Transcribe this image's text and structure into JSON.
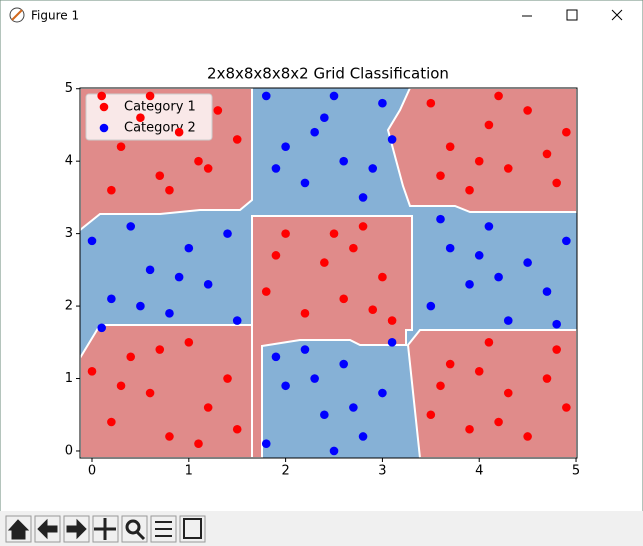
{
  "window_title": "Figure 1",
  "chart_data": {
    "type": "scatter",
    "title": "2x8x8x8x8x2 Grid Classification",
    "xlim": [
      -0.124,
      5.01
    ],
    "ylim": [
      -0.097,
      5.01
    ],
    "xticks": [
      0,
      1,
      2,
      3,
      4,
      5
    ],
    "yticks": [
      0,
      1,
      2,
      3,
      4,
      5
    ],
    "legend": "upper left",
    "series": [
      {
        "name": "Category 1",
        "color": "#ff0000",
        "x": [
          0.1,
          0.3,
          0.5,
          0.7,
          0.9,
          1.1,
          1.3,
          1.5,
          0.2,
          0.8,
          1.2,
          0.6,
          3.5,
          3.7,
          3.9,
          4.1,
          4.3,
          4.5,
          4.7,
          4.9,
          3.6,
          4.2,
          4.8,
          4.0,
          1.8,
          2.0,
          2.2,
          2.4,
          2.6,
          2.8,
          3.0,
          3.1,
          1.9,
          2.5,
          2.7,
          2.9,
          0.0,
          0.2,
          0.4,
          0.6,
          0.8,
          1.0,
          1.2,
          1.4,
          0.3,
          0.7,
          1.1,
          1.5,
          3.5,
          3.7,
          3.9,
          4.1,
          4.3,
          4.5,
          4.7,
          4.9,
          3.6,
          4.2,
          4.8,
          4.0
        ],
        "values": [
          4.9,
          4.2,
          4.6,
          3.8,
          4.4,
          4.0,
          4.7,
          4.3,
          3.6,
          3.6,
          3.9,
          4.9,
          4.8,
          4.2,
          3.6,
          4.5,
          3.9,
          4.7,
          4.1,
          4.4,
          3.8,
          4.9,
          3.7,
          4.0,
          2.2,
          3.0,
          1.9,
          2.6,
          2.1,
          3.1,
          2.4,
          1.8,
          2.7,
          3.0,
          2.8,
          1.95,
          1.1,
          0.4,
          1.3,
          0.8,
          0.2,
          1.5,
          0.6,
          1.0,
          0.9,
          1.4,
          0.1,
          0.3,
          0.5,
          1.2,
          0.3,
          1.5,
          0.8,
          0.2,
          1.0,
          0.6,
          0.9,
          0.4,
          1.4,
          1.1
        ]
      },
      {
        "name": "Category 2",
        "color": "#0000ff",
        "x": [
          1.8,
          2.0,
          2.2,
          2.4,
          2.6,
          2.8,
          3.0,
          3.1,
          1.9,
          2.5,
          2.3,
          2.9,
          0.0,
          0.2,
          0.4,
          0.6,
          0.8,
          1.0,
          1.2,
          1.4,
          1.5,
          0.1,
          0.9,
          0.5,
          3.5,
          3.7,
          3.9,
          4.1,
          4.3,
          4.5,
          4.7,
          4.9,
          3.6,
          4.2,
          4.8,
          4.0,
          1.8,
          2.0,
          2.2,
          2.4,
          2.6,
          2.8,
          3.0,
          3.1,
          1.9,
          2.5,
          2.7,
          2.3
        ],
        "values": [
          4.9,
          4.2,
          3.7,
          4.6,
          4.0,
          3.5,
          4.8,
          4.3,
          3.9,
          4.9,
          4.4,
          3.9,
          2.9,
          2.1,
          3.1,
          2.5,
          1.9,
          2.8,
          2.3,
          3.0,
          1.8,
          1.7,
          2.4,
          2.0,
          2.0,
          2.8,
          2.3,
          3.1,
          1.8,
          2.6,
          2.2,
          2.9,
          3.2,
          2.4,
          1.75,
          2.7,
          0.1,
          0.9,
          1.4,
          0.5,
          1.2,
          0.2,
          0.8,
          1.5,
          1.3,
          0.0,
          0.6,
          1.0
        ]
      }
    ]
  }
}
